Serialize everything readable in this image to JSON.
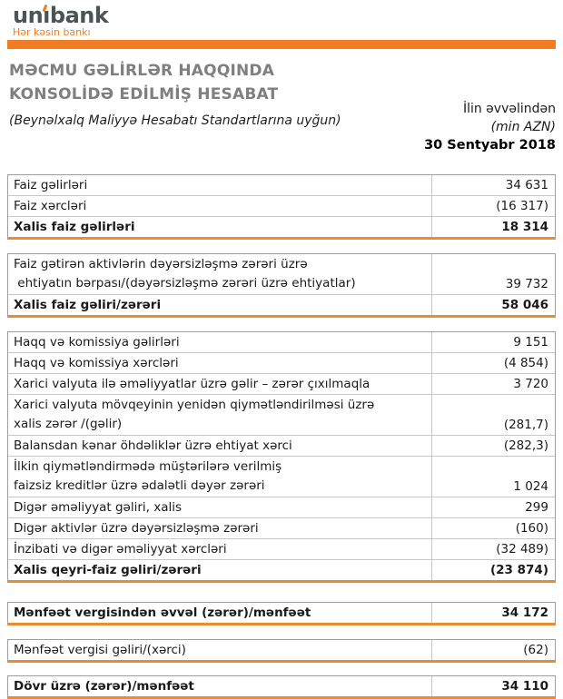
{
  "brand": {
    "name_part1": "un",
    "name_part2": "ı",
    "name_part3": "bank",
    "full_name": "unibank",
    "tagline": "Hər kəsin bankı"
  },
  "colors": {
    "brand_orange": "#f07d22",
    "table_underline_orange": "#ed8b33",
    "title_gray": "#7f7f7f",
    "logo_slate": "#4e5356"
  },
  "header": {
    "title_line1": "MƏCMU GƏLİRLƏR HAQQINDA",
    "title_line2": "KONSOLİDƏ EDİLMİŞ HESABAT",
    "subtitle": "(Beynəlxalq Maliyyə Hesabatı Standartlarına uyğun)",
    "period_label": "İlin əvvəlindən",
    "unit_label": "(min AZN)",
    "date_label": "30 Sentyabr 2018"
  },
  "sections": [
    {
      "rows": [
        {
          "label": [
            "Faiz gəlirləri"
          ],
          "value": "34 631",
          "bold": false
        },
        {
          "label": [
            "Faiz xərcləri"
          ],
          "value": "(16 317)",
          "bold": false
        },
        {
          "label": [
            "Xalis faiz gəlirləri"
          ],
          "value": "18 314",
          "bold": true
        }
      ]
    },
    {
      "rows": [
        {
          "label": [
            "Faiz gətirən aktivlərin dəyərsizləşmə zərəri üzrə",
            " ehtiyatın bərpası/(dəyərsizləşmə zərəri üzrə ehtiyatlar)"
          ],
          "value": "39 732",
          "bold": false
        },
        {
          "label": [
            "Xalis faiz gəliri/zərəri"
          ],
          "value": "58 046",
          "bold": true
        }
      ]
    },
    {
      "rows": [
        {
          "label": [
            "Haqq və komissiya gəlirləri"
          ],
          "value": "9 151",
          "bold": false
        },
        {
          "label": [
            "Haqq və komissiya xərcləri"
          ],
          "value": "(4 854)",
          "bold": false
        },
        {
          "label": [
            "Xarici valyuta ilə əməliyyatlar üzrə gəlir – zərər çıxılmaqla"
          ],
          "value": "3 720",
          "bold": false
        },
        {
          "label": [
            "Xarici valyuta mövqeyinin yenidən qiymətləndirilməsi üzrə",
            "xalis zərər /(gəlir)"
          ],
          "value": "(281,7)",
          "bold": false
        },
        {
          "label": [
            "Balansdan kənar öhdəliklər üzrə ehtiyat xərci"
          ],
          "value": "(282,3)",
          "bold": false
        },
        {
          "label": [
            "İlkin qiymətləndirmədə müştərilərə verilmiş",
            "faizsiz kreditlər üzrə ədalətli dəyər zərəri"
          ],
          "value": "1 024",
          "bold": false
        },
        {
          "label": [
            "Digər əməliyyat gəliri, xalis"
          ],
          "value": "299",
          "bold": false
        },
        {
          "label": [
            "Digər aktivlər üzrə dəyərsizləşmə zərəri"
          ],
          "value": "(160)",
          "bold": false
        },
        {
          "label": [
            "İnzibati və digər əməliyyat xərcləri"
          ],
          "value": "(32 489)",
          "bold": false
        },
        {
          "label": [
            "Xalis qeyri-faiz gəliri/zərəri"
          ],
          "value": "(23 874)",
          "bold": true
        }
      ]
    },
    {
      "rows": [
        {
          "label": [
            "Mənfəət vergisindən əvvəl (zərər)/mənfəət"
          ],
          "value": "34 172",
          "bold": true
        }
      ]
    },
    {
      "rows": [
        {
          "label": [
            "Mənfəət vergisi gəliri/(xərci)"
          ],
          "value": "(62)",
          "bold": false
        }
      ]
    },
    {
      "rows": [
        {
          "label": [
            "Dövr üzrə (zərər)/mənfəət"
          ],
          "value": "34 110",
          "bold": true
        }
      ]
    }
  ]
}
